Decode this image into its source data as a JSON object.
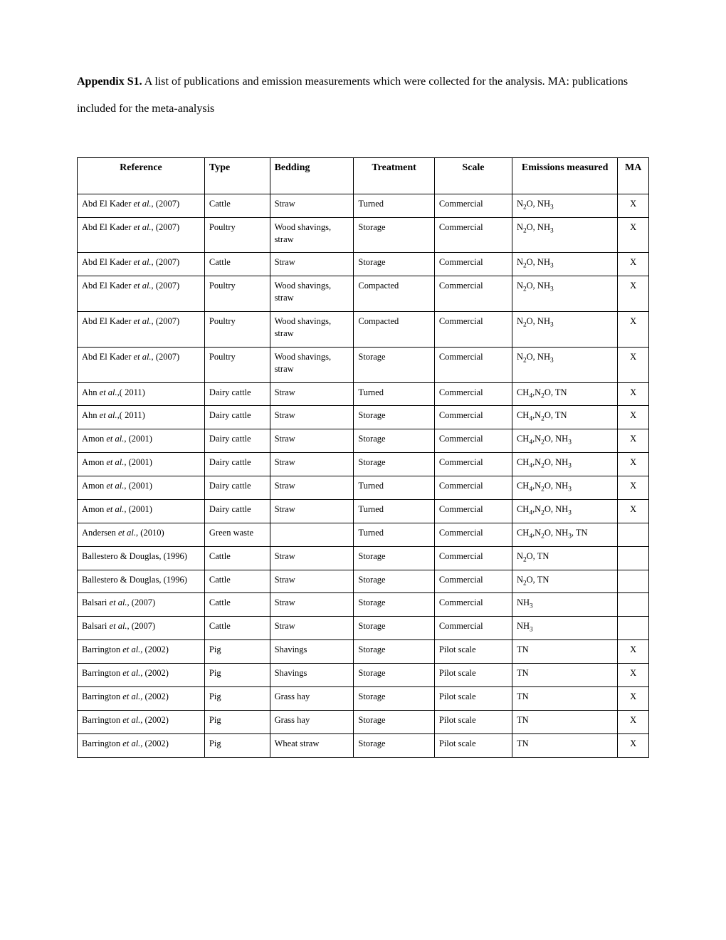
{
  "caption": {
    "label": "Appendix S1.",
    "text": " A list of publications and emission measurements which were collected for the analysis. MA: publications included for the meta-analysis"
  },
  "headers": {
    "reference": "Reference",
    "type": "Type",
    "bedding": "Bedding",
    "treatment": "Treatment",
    "scale": "Scale",
    "emissions": "Emissions measured",
    "ma": "MA"
  },
  "rows": [
    {
      "ref_a": "Abd El Kader ",
      "ref_i": "et al.",
      "ref_y": ", (2007)",
      "type": "Cattle",
      "bedding": "Straw",
      "treatment": "Turned",
      "scale": "Commercial",
      "emis_html": "N<sub>2</sub>O, NH<sub>3</sub>",
      "ma": "X"
    },
    {
      "ref_a": "Abd El Kader ",
      "ref_i": "et al.",
      "ref_y": ", (2007)",
      "type": "Poultry",
      "bedding": "Wood shavings, straw",
      "treatment": "Storage",
      "scale": "Commercial",
      "emis_html": "N<sub>2</sub>O, NH<sub>3</sub>",
      "ma": "X"
    },
    {
      "ref_a": "Abd El Kader ",
      "ref_i": "et al.",
      "ref_y": ", (2007)",
      "type": "Cattle",
      "bedding": "Straw",
      "treatment": "Storage",
      "scale": "Commercial",
      "emis_html": "N<sub>2</sub>O, NH<sub>3</sub>",
      "ma": "X"
    },
    {
      "ref_a": "Abd El Kader ",
      "ref_i": "et al.",
      "ref_y": ", (2007)",
      "type": "Poultry",
      "bedding": "Wood shavings, straw",
      "treatment": "Compacted",
      "scale": "Commercial",
      "emis_html": "N<sub>2</sub>O, NH<sub>3</sub>",
      "ma": "X"
    },
    {
      "ref_a": "Abd El Kader ",
      "ref_i": "et al.",
      "ref_y": ", (2007)",
      "type": "Poultry",
      "bedding": "Wood shavings, straw",
      "treatment": "Compacted",
      "scale": "Commercial",
      "emis_html": "N<sub>2</sub>O, NH<sub>3</sub>",
      "ma": "X"
    },
    {
      "ref_a": "Abd El Kader ",
      "ref_i": "et al.",
      "ref_y": ", (2007)",
      "type": "Poultry",
      "bedding": "Wood shavings, straw",
      "treatment": "Storage",
      "scale": "Commercial",
      "emis_html": "N<sub>2</sub>O, NH<sub>3</sub>",
      "ma": "X"
    },
    {
      "ref_a": "Ahn ",
      "ref_i": "et al.",
      "ref_y": ",( 2011)",
      "type": "Dairy cattle",
      "bedding": "Straw",
      "treatment": "Turned",
      "scale": "Commercial",
      "emis_html": "CH<sub>4</sub>,N<sub>2</sub>O, TN",
      "ma": "X"
    },
    {
      "ref_a": "Ahn ",
      "ref_i": "et al.",
      "ref_y": ",( 2011)",
      "type": "Dairy cattle",
      "bedding": "Straw",
      "treatment": "Storage",
      "scale": "Commercial",
      "emis_html": "CH<sub>4</sub>,N<sub>2</sub>O, TN",
      "ma": "X"
    },
    {
      "ref_a": "Amon ",
      "ref_i": "et al.",
      "ref_y": ", (2001)",
      "type": "Dairy cattle",
      "bedding": "Straw",
      "treatment": "Storage",
      "scale": "Commercial",
      "emis_html": "CH<sub>4</sub>,N<sub>2</sub>O, NH<sub>3</sub>",
      "ma": "X"
    },
    {
      "ref_a": "Amon ",
      "ref_i": "et al.",
      "ref_y": ", (2001)",
      "type": "Dairy cattle",
      "bedding": "Straw",
      "treatment": "Storage",
      "scale": "Commercial",
      "emis_html": "CH<sub>4</sub>,N<sub>2</sub>O, NH<sub>3</sub>",
      "ma": "X"
    },
    {
      "ref_a": "Amon ",
      "ref_i": "et al.",
      "ref_y": ", (2001)",
      "type": "Dairy cattle",
      "bedding": "Straw",
      "treatment": "Turned",
      "scale": "Commercial",
      "emis_html": "CH<sub>4</sub>,N<sub>2</sub>O, NH<sub>3</sub>",
      "ma": "X"
    },
    {
      "ref_a": "Amon ",
      "ref_i": "et al.",
      "ref_y": ", (2001)",
      "type": "Dairy cattle",
      "bedding": "Straw",
      "treatment": "Turned",
      "scale": "Commercial",
      "emis_html": "CH<sub>4</sub>,N<sub>2</sub>O, NH<sub>3</sub>",
      "ma": "X"
    },
    {
      "ref_a": "Andersen ",
      "ref_i": "et al.",
      "ref_y": ", (2010)",
      "type": "Green waste",
      "bedding": "",
      "treatment": "Turned",
      "scale": "Commercial",
      "emis_html": "CH<sub>4</sub>,N<sub>2</sub>O, NH<sub>3</sub>, TN",
      "ma": ""
    },
    {
      "ref_a": "Ballestero & Douglas, (1996)",
      "ref_i": "",
      "ref_y": "",
      "type": "Cattle",
      "bedding": "Straw",
      "treatment": "Storage",
      "scale": "Commercial",
      "emis_html": "N<sub>2</sub>O, TN",
      "ma": ""
    },
    {
      "ref_a": "Ballestero & Douglas, (1996)",
      "ref_i": "",
      "ref_y": "",
      "type": "Cattle",
      "bedding": "Straw",
      "treatment": "Storage",
      "scale": "Commercial",
      "emis_html": "N<sub>2</sub>O, TN",
      "ma": ""
    },
    {
      "ref_a": "Balsari ",
      "ref_i": "et al.",
      "ref_y": ", (2007)",
      "type": "Cattle",
      "bedding": "Straw",
      "treatment": "Storage",
      "scale": "Commercial",
      "emis_html": "NH<sub>3</sub>",
      "ma": ""
    },
    {
      "ref_a": "Balsari ",
      "ref_i": "et al.",
      "ref_y": ", (2007)",
      "type": "Cattle",
      "bedding": "Straw",
      "treatment": "Storage",
      "scale": "Commercial",
      "emis_html": "NH<sub>3</sub>",
      "ma": ""
    },
    {
      "ref_a": "Barrington ",
      "ref_i": "et al.",
      "ref_y": ", (2002)",
      "type": "Pig",
      "bedding": "Shavings",
      "treatment": "Storage",
      "scale": "Pilot scale",
      "emis_html": "TN",
      "ma": "X"
    },
    {
      "ref_a": "Barrington ",
      "ref_i": "et al.",
      "ref_y": ", (2002)",
      "type": "Pig",
      "bedding": "Shavings",
      "treatment": "Storage",
      "scale": "Pilot scale",
      "emis_html": "TN",
      "ma": "X"
    },
    {
      "ref_a": "Barrington ",
      "ref_i": "et al.",
      "ref_y": ", (2002)",
      "type": "Pig",
      "bedding": "Grass hay",
      "treatment": "Storage",
      "scale": "Pilot scale",
      "emis_html": "TN",
      "ma": "X"
    },
    {
      "ref_a": "Barrington ",
      "ref_i": "et al.",
      "ref_y": ", (2002)",
      "type": "Pig",
      "bedding": "Grass hay",
      "treatment": "Storage",
      "scale": "Pilot scale",
      "emis_html": "TN",
      "ma": "X"
    },
    {
      "ref_a": "Barrington ",
      "ref_i": "et al.",
      "ref_y": ", (2002)",
      "type": "Pig",
      "bedding": "Wheat straw",
      "treatment": "Storage",
      "scale": "Pilot scale",
      "emis_html": "TN",
      "ma": "X"
    }
  ]
}
